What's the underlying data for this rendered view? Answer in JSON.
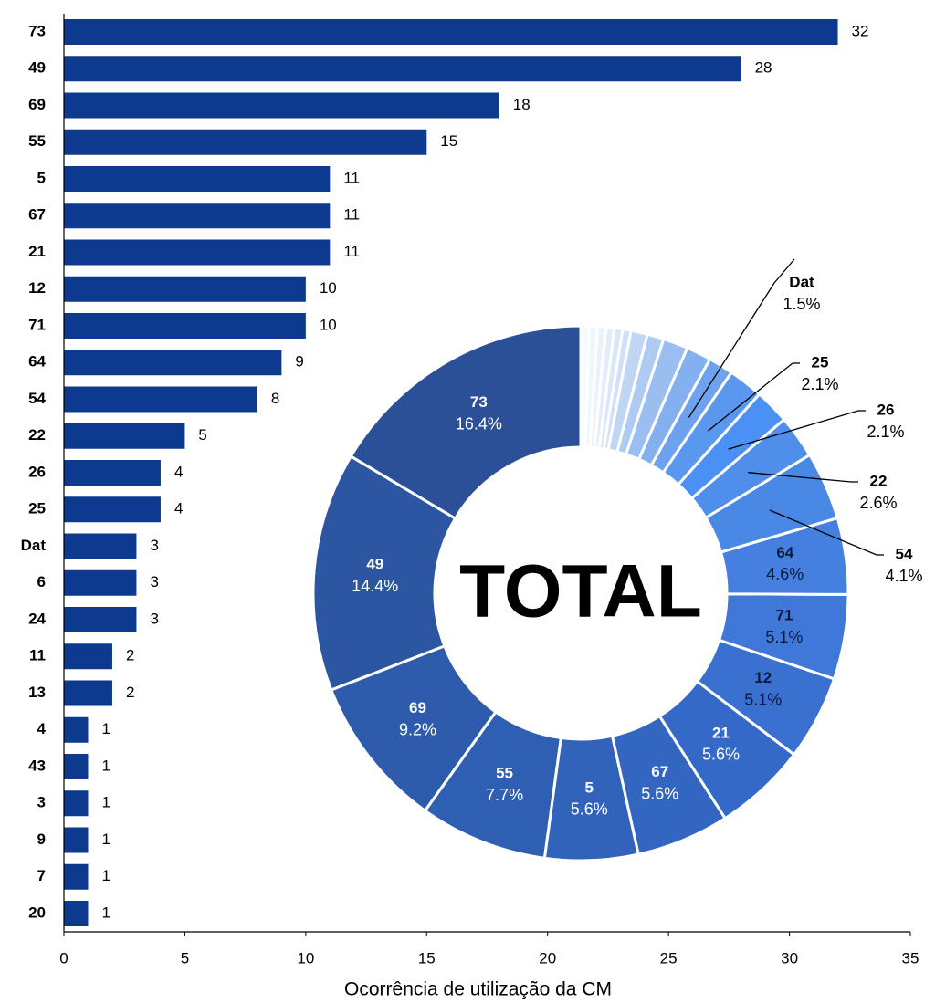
{
  "chart_data": [
    {
      "type": "barh",
      "categories": [
        "73",
        "49",
        "69",
        "55",
        "5",
        "67",
        "21",
        "12",
        "71",
        "64",
        "54",
        "22",
        "26",
        "25",
        "Dat",
        "6",
        "24",
        "11",
        "13",
        "4",
        "43",
        "3",
        "9",
        "7",
        "20"
      ],
      "values": [
        32,
        28,
        18,
        15,
        11,
        11,
        11,
        10,
        10,
        9,
        8,
        5,
        4,
        4,
        3,
        3,
        3,
        2,
        2,
        1,
        1,
        1,
        1,
        1,
        1
      ],
      "color": "#0d3a8f",
      "xlim": [
        0,
        35
      ],
      "xticks": [
        0,
        5,
        10,
        15,
        20,
        25,
        30,
        35
      ],
      "xlabel": "Ocorrência de utilização da CM"
    },
    {
      "type": "donut",
      "center_label": "TOTAL",
      "categories": [
        "73",
        "49",
        "69",
        "55",
        "5",
        "67",
        "21",
        "12",
        "71",
        "64",
        "54",
        "22",
        "26",
        "25",
        "Dat",
        null,
        null,
        null,
        null,
        null,
        null,
        null,
        null,
        null,
        null
      ],
      "values": [
        16.4,
        14.4,
        9.2,
        7.7,
        5.6,
        5.6,
        5.6,
        5.1,
        5.1,
        4.6,
        4.1,
        2.6,
        2.1,
        2.1,
        1.5,
        1.5,
        1.5,
        1.0,
        1.0,
        0.5,
        0.5,
        0.5,
        0.5,
        0.5,
        0.5
      ],
      "value_labels": [
        "16.4%",
        "14.4%",
        "9.2%",
        "7.7%",
        "5.6%",
        "5.6%",
        "5.6%",
        "5.1%",
        "5.1%",
        "4.6%",
        "4.1%",
        "2.6%",
        "2.1%",
        "2.1%",
        "1.5%",
        null,
        null,
        null,
        null,
        null,
        null,
        null,
        null,
        null,
        null
      ],
      "colors": [
        "#2b5097",
        "#2c56a1",
        "#2e5bab",
        "#2f5fb3",
        "#3163bb",
        "#3366c1",
        "#3569c8",
        "#3a70d0",
        "#3f78d9",
        "#4580e0",
        "#4a88e6",
        "#4f8eea",
        "#4a90f5",
        "#5a98f0",
        "#6fa2ee",
        "#85b0ef",
        "#9bbef1",
        "#aecbf3",
        "#bfd6f5",
        "#cfe0f7",
        "#dae7f9",
        "#e3edfa",
        "#ebf2fb",
        "#f1f6fc",
        "#f6f9fd"
      ]
    }
  ]
}
